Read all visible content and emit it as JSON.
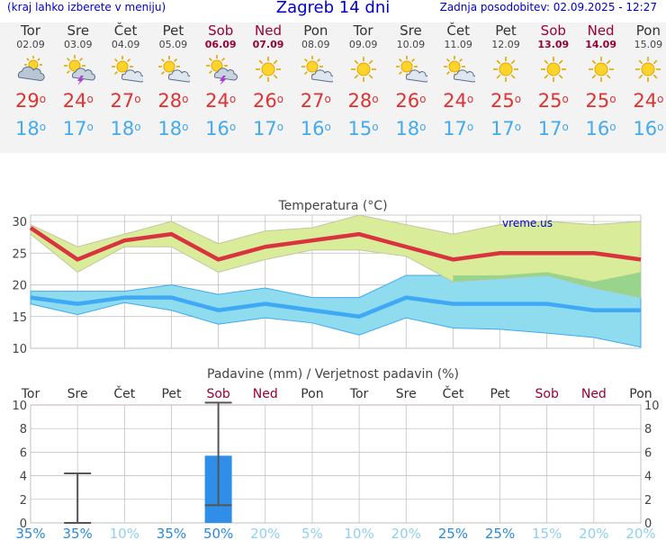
{
  "header": {
    "menu_hint": "(kraj lahko izberete v meniju)",
    "title": "Zagreb 14 dni",
    "update": "Zadnja posodobitev: 02.09.2025 - 12:27"
  },
  "degree_symbol": "o",
  "days": [
    {
      "name": "Tor",
      "date": "02.09",
      "weekend": false,
      "icon": "partly-cloudy-icon",
      "tmax": "29",
      "tmin": "18"
    },
    {
      "name": "Sre",
      "date": "03.09",
      "weekend": false,
      "icon": "thunderstorm-icon",
      "tmax": "24",
      "tmin": "17"
    },
    {
      "name": "Čet",
      "date": "04.09",
      "weekend": false,
      "icon": "sun-cloud-icon",
      "tmax": "27",
      "tmin": "18"
    },
    {
      "name": "Pet",
      "date": "05.09",
      "weekend": false,
      "icon": "sun-cloud-icon",
      "tmax": "28",
      "tmin": "18"
    },
    {
      "name": "Sob",
      "date": "06.09",
      "weekend": true,
      "icon": "thunderstorm-icon",
      "tmax": "24",
      "tmin": "16"
    },
    {
      "name": "Ned",
      "date": "07.09",
      "weekend": true,
      "icon": "sun-icon",
      "tmax": "26",
      "tmin": "17"
    },
    {
      "name": "Pon",
      "date": "08.09",
      "weekend": false,
      "icon": "sun-cloud-icon",
      "tmax": "27",
      "tmin": "16"
    },
    {
      "name": "Tor",
      "date": "09.09",
      "weekend": false,
      "icon": "sun-icon",
      "tmax": "28",
      "tmin": "15"
    },
    {
      "name": "Sre",
      "date": "10.09",
      "weekend": false,
      "icon": "sun-cloud-icon",
      "tmax": "26",
      "tmin": "18"
    },
    {
      "name": "Čet",
      "date": "11.09",
      "weekend": false,
      "icon": "sun-cloud-icon",
      "tmax": "24",
      "tmin": "17"
    },
    {
      "name": "Pet",
      "date": "12.09",
      "weekend": false,
      "icon": "sun-icon",
      "tmax": "25",
      "tmin": "17"
    },
    {
      "name": "Sob",
      "date": "13.09",
      "weekend": true,
      "icon": "sun-icon",
      "tmax": "25",
      "tmin": "17"
    },
    {
      "name": "Ned",
      "date": "14.09",
      "weekend": true,
      "icon": "sun-icon",
      "tmax": "25",
      "tmin": "16"
    },
    {
      "name": "Pon",
      "date": "15.09",
      "weekend": false,
      "icon": "sun-icon",
      "tmax": "24",
      "tmin": "16"
    }
  ],
  "colors": {
    "max_line": "#d9333f",
    "min_line": "#3fa9f5",
    "max_band": "#d8ec9a",
    "max_band_edge": "#c5c5a0",
    "min_band": "#8fdcee",
    "min_band_edge": "#3fa9f5",
    "overlap_band": "#8ed08a",
    "precip_bar": "#2f8fe8",
    "weekend": "#990033",
    "grid": "#bbbbbb",
    "brand": "#0000cc"
  },
  "chart_data": [
    {
      "type": "line",
      "title": "Temperatura (°C)",
      "watermark": "vreme.us",
      "ylim": [
        10,
        31
      ],
      "yticks": [
        10,
        15,
        20,
        25,
        30
      ],
      "x": [
        "02.09",
        "03.09",
        "04.09",
        "05.09",
        "06.09",
        "07.09",
        "08.09",
        "09.09",
        "10.09",
        "11.09",
        "12.09",
        "13.09",
        "14.09",
        "15.09"
      ],
      "series": [
        {
          "role": "max",
          "values": [
            29,
            24,
            27,
            28,
            24,
            26,
            27,
            28,
            26,
            24,
            25,
            25,
            25,
            24
          ]
        },
        {
          "role": "max_upper",
          "values": [
            29.5,
            26,
            28,
            30,
            26.5,
            28.5,
            29,
            31,
            29.5,
            28,
            29.5,
            30,
            29.5,
            30
          ]
        },
        {
          "role": "max_lower",
          "values": [
            28,
            22,
            26,
            26,
            22,
            24,
            25.5,
            25.5,
            24.5,
            20.5,
            21,
            21.5,
            19.5,
            18
          ]
        },
        {
          "role": "min",
          "values": [
            18,
            17,
            18,
            18,
            16,
            17,
            16,
            15,
            18,
            17,
            17,
            17,
            16,
            16
          ]
        },
        {
          "role": "min_upper",
          "values": [
            19,
            19,
            19,
            20,
            18.5,
            19.5,
            18,
            18,
            21.5,
            21.5,
            21.5,
            22,
            20.5,
            22
          ]
        },
        {
          "role": "min_lower",
          "values": [
            17,
            15.3,
            17.2,
            16,
            13.8,
            14.8,
            14,
            12.1,
            14.8,
            13.2,
            13,
            12.4,
            11.7,
            10.2
          ]
        }
      ]
    },
    {
      "type": "bar",
      "title": "Padavine (mm) / Verjetnost padavin (%)",
      "ylim": [
        0,
        10
      ],
      "yticks": [
        0,
        2,
        4,
        6,
        8,
        10
      ],
      "categories": [
        "Tor",
        "Sre",
        "Čet",
        "Pet",
        "Sob",
        "Ned",
        "Pon",
        "Tor",
        "Sre",
        "Čet",
        "Pet",
        "Sob",
        "Ned",
        "Pon"
      ],
      "weekend": [
        false,
        false,
        false,
        false,
        true,
        true,
        false,
        false,
        false,
        false,
        false,
        true,
        true,
        false
      ],
      "values": [
        0,
        0,
        0,
        0,
        5.7,
        0,
        0,
        0,
        0,
        0,
        0,
        0,
        0,
        0
      ],
      "range_low": [
        null,
        0,
        null,
        null,
        1.5,
        null,
        null,
        null,
        null,
        null,
        null,
        null,
        null,
        null
      ],
      "range_high": [
        null,
        4.2,
        null,
        null,
        10.2,
        null,
        null,
        null,
        null,
        null,
        null,
        null,
        null,
        null
      ],
      "probability": [
        "35%",
        "35%",
        "10%",
        "35%",
        "50%",
        "20%",
        "5%",
        "10%",
        "20%",
        "25%",
        "25%",
        "15%",
        "20%",
        "20%"
      ],
      "probability_colors": [
        "#2a8ae0",
        "#2a8ae0",
        "#8fd0f0",
        "#2a8ae0",
        "#2a8ae0",
        "#8fd0f0",
        "#8fd0f0",
        "#8fd0f0",
        "#8fd0f0",
        "#2a8ae0",
        "#2a8ae0",
        "#8fd0f0",
        "#8fd0f0",
        "#8fd0f0"
      ]
    }
  ]
}
